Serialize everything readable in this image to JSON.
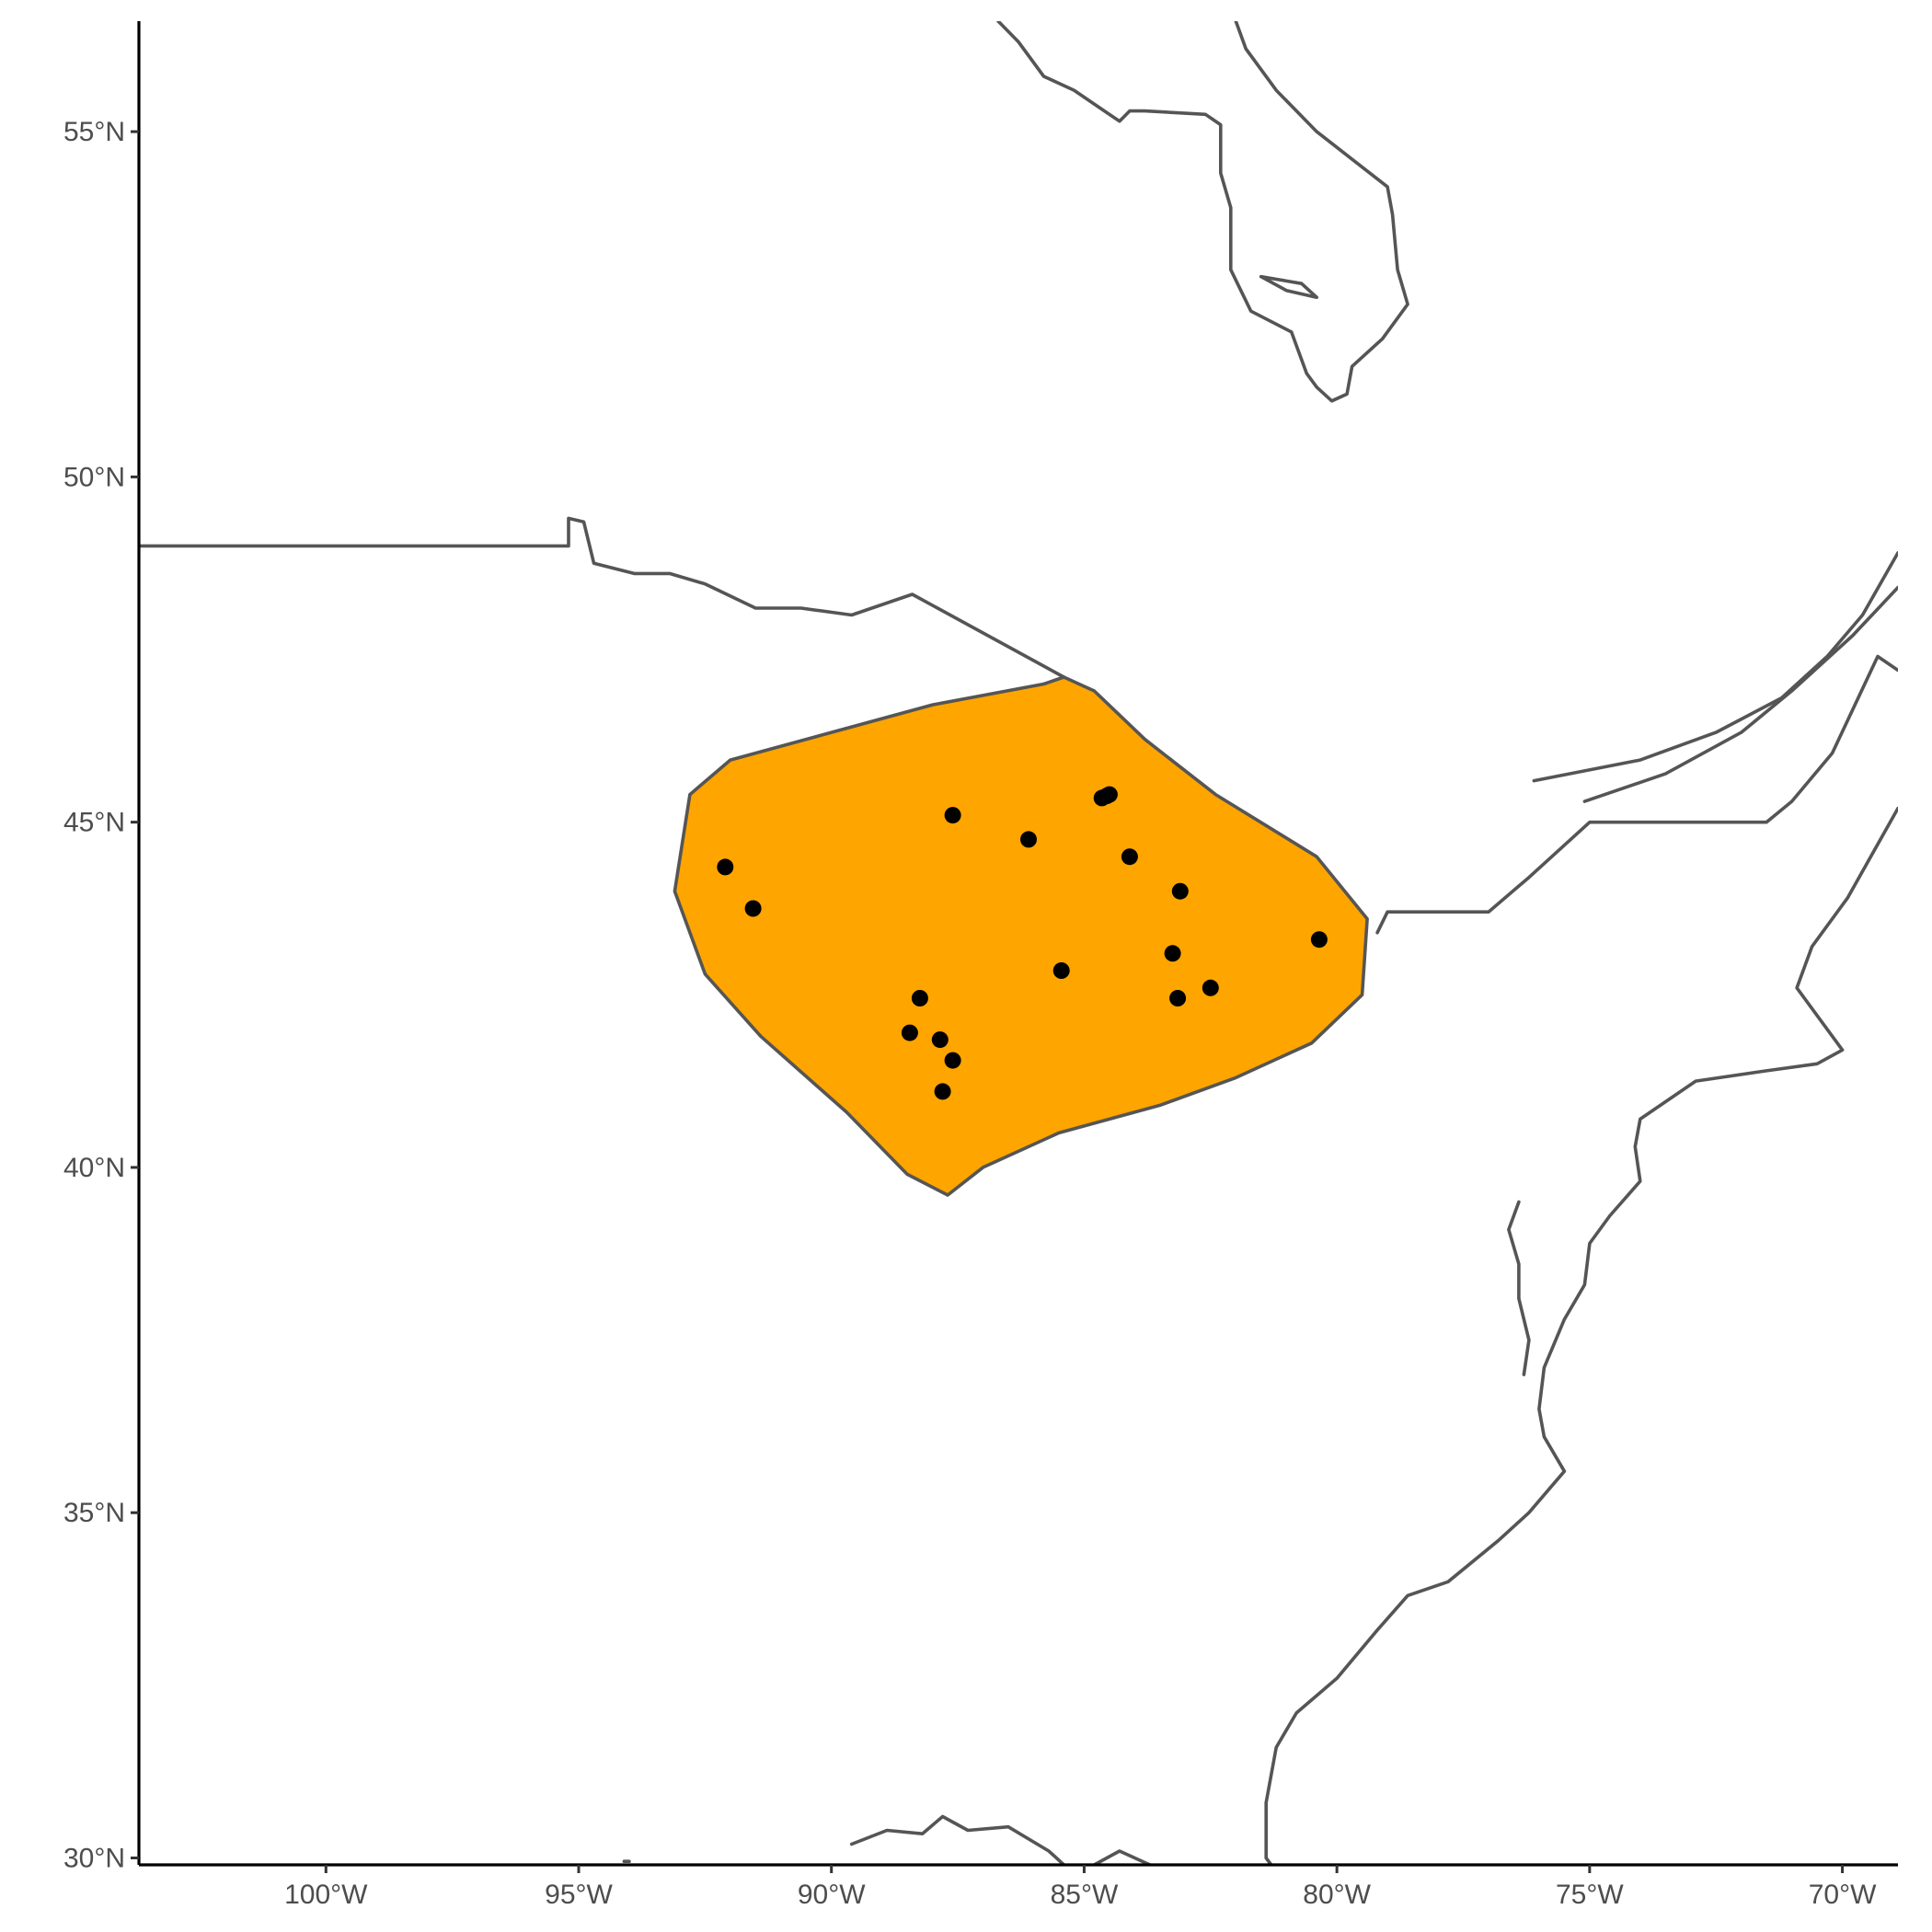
{
  "map": {
    "projection": "geographic (longitude / latitude)",
    "lon_range": [
      -103.7,
      -68.9
    ],
    "lat_range": [
      29.9,
      56.6
    ],
    "grid": false,
    "x_ticks": [
      {
        "lon": -100,
        "label": "100°W"
      },
      {
        "lon": -95,
        "label": "95°W"
      },
      {
        "lon": -90,
        "label": "90°W"
      },
      {
        "lon": -85,
        "label": "85°W"
      },
      {
        "lon": -80,
        "label": "80°W"
      },
      {
        "lon": -75,
        "label": "75°W"
      },
      {
        "lon": -70,
        "label": "70°W"
      }
    ],
    "y_ticks": [
      {
        "lat": 30,
        "label": "30°N"
      },
      {
        "lat": 35,
        "label": "35°N"
      },
      {
        "lat": 40,
        "label": "40°N"
      },
      {
        "lat": 45,
        "label": "45°N"
      },
      {
        "lat": 50,
        "label": "50°N"
      },
      {
        "lat": 55,
        "label": "55°N"
      }
    ],
    "colors": {
      "range_fill": "#FFA500",
      "outline": "#555555",
      "points": "#000000",
      "background": "#ffffff"
    },
    "range_polygon": {
      "name": "range-area",
      "coords": [
        [
          -85.4,
          47.1
        ],
        [
          -84.8,
          46.9
        ],
        [
          -83.8,
          46.2
        ],
        [
          -82.4,
          45.4
        ],
        [
          -80.4,
          44.5
        ],
        [
          -79.4,
          43.6
        ],
        [
          -79.5,
          42.5
        ],
        [
          -80.5,
          41.8
        ],
        [
          -82.0,
          41.3
        ],
        [
          -83.5,
          40.9
        ],
        [
          -85.5,
          40.5
        ],
        [
          -87.0,
          40.0
        ],
        [
          -87.7,
          39.6
        ],
        [
          -88.5,
          39.9
        ],
        [
          -89.7,
          40.8
        ],
        [
          -91.4,
          41.9
        ],
        [
          -92.5,
          42.8
        ],
        [
          -93.1,
          44.0
        ],
        [
          -92.8,
          45.4
        ],
        [
          -92.0,
          45.9
        ],
        [
          -88.0,
          46.7
        ],
        [
          -85.8,
          47.0
        ],
        [
          -85.4,
          47.1
        ]
      ]
    },
    "points": [
      [
        -92.1,
        44.35
      ],
      [
        -91.55,
        43.75
      ],
      [
        -87.6,
        45.1
      ],
      [
        -86.1,
        44.75
      ],
      [
        -84.65,
        45.35
      ],
      [
        -84.5,
        45.4
      ],
      [
        -84.55,
        45.38
      ],
      [
        -84.1,
        44.5
      ],
      [
        -83.1,
        44.0
      ],
      [
        -83.25,
        43.1
      ],
      [
        -80.35,
        43.3
      ],
      [
        -85.45,
        42.85
      ],
      [
        -82.5,
        42.6
      ],
      [
        -83.15,
        42.45
      ],
      [
        -88.25,
        42.45
      ],
      [
        -88.45,
        41.95
      ],
      [
        -87.85,
        41.85
      ],
      [
        -87.6,
        41.55
      ],
      [
        -87.8,
        41.1
      ]
    ],
    "coastlines": [
      {
        "name": "us-canada-border-west",
        "coords": [
          [
            -103.7,
            49.0
          ],
          [
            -95.2,
            49.0
          ],
          [
            -95.2,
            49.4
          ],
          [
            -94.9,
            49.35
          ],
          [
            -94.7,
            48.75
          ],
          [
            -93.9,
            48.6
          ],
          [
            -93.2,
            48.6
          ],
          [
            -92.5,
            48.45
          ],
          [
            -91.5,
            48.1
          ],
          [
            -90.6,
            48.1
          ],
          [
            -89.6,
            48.0
          ],
          [
            -88.4,
            48.3
          ],
          [
            -85.4,
            47.1
          ]
        ]
      },
      {
        "name": "us-canada-border-east",
        "coords": [
          [
            -79.2,
            43.4
          ],
          [
            -79.0,
            43.7
          ],
          [
            -77.0,
            43.7
          ],
          [
            -76.2,
            44.2
          ],
          [
            -75.0,
            45.0
          ],
          [
            -71.5,
            45.0
          ],
          [
            -71.0,
            45.3
          ],
          [
            -70.2,
            46.0
          ],
          [
            -69.3,
            47.4
          ],
          [
            -68.9,
            47.2
          ]
        ]
      },
      {
        "name": "st-lawrence-north",
        "coords": [
          [
            -76.1,
            45.6
          ],
          [
            -74.0,
            45.9
          ],
          [
            -72.5,
            46.3
          ],
          [
            -71.2,
            46.8
          ],
          [
            -70.3,
            47.4
          ],
          [
            -69.6,
            48.0
          ],
          [
            -68.9,
            48.9
          ]
        ]
      },
      {
        "name": "st-lawrence-south",
        "coords": [
          [
            -75.1,
            45.3
          ],
          [
            -73.5,
            45.7
          ],
          [
            -72.0,
            46.3
          ],
          [
            -71.0,
            46.9
          ],
          [
            -69.8,
            47.7
          ],
          [
            -68.9,
            48.4
          ]
        ]
      },
      {
        "name": "hudson-bay",
        "coords": [
          [
            -86.7,
            56.6
          ],
          [
            -86.3,
            56.3
          ],
          [
            -85.8,
            55.8
          ],
          [
            -85.2,
            55.6
          ],
          [
            -84.6,
            55.3
          ],
          [
            -84.3,
            55.15
          ],
          [
            -84.1,
            55.3
          ],
          [
            -83.8,
            55.3
          ],
          [
            -82.6,
            55.25
          ],
          [
            -82.3,
            55.1
          ],
          [
            -82.3,
            54.4
          ],
          [
            -82.1,
            53.9
          ],
          [
            -82.1,
            53.0
          ],
          [
            -81.7,
            52.4
          ],
          [
            -80.9,
            52.1
          ],
          [
            -80.6,
            51.5
          ],
          [
            -80.4,
            51.3
          ],
          [
            -80.1,
            51.1
          ],
          [
            -79.8,
            51.2
          ],
          [
            -79.7,
            51.6
          ],
          [
            -79.1,
            52.0
          ],
          [
            -78.6,
            52.5
          ],
          [
            -78.8,
            53.0
          ],
          [
            -78.9,
            53.8
          ],
          [
            -79.0,
            54.2
          ],
          [
            -79.7,
            54.6
          ],
          [
            -80.4,
            55.0
          ],
          [
            -81.2,
            55.6
          ],
          [
            -81.8,
            56.2
          ],
          [
            -82.0,
            56.6
          ]
        ]
      },
      {
        "name": "akimiski-island",
        "coords": [
          [
            -81.5,
            52.9
          ],
          [
            -80.7,
            52.8
          ],
          [
            -80.4,
            52.6
          ],
          [
            -81.0,
            52.7
          ],
          [
            -81.5,
            52.9
          ]
        ]
      },
      {
        "name": "east-coast",
        "coords": [
          [
            -68.9,
            45.2
          ],
          [
            -69.9,
            43.9
          ],
          [
            -70.6,
            43.2
          ],
          [
            -70.9,
            42.6
          ],
          [
            -70.0,
            41.7
          ],
          [
            -70.5,
            41.5
          ],
          [
            -71.5,
            41.4
          ],
          [
            -72.9,
            41.25
          ],
          [
            -74.0,
            40.7
          ],
          [
            -74.1,
            40.3
          ],
          [
            -74.0,
            39.8
          ],
          [
            -74.6,
            39.3
          ],
          [
            -75.0,
            38.9
          ],
          [
            -75.1,
            38.3
          ],
          [
            -75.5,
            37.8
          ],
          [
            -75.9,
            37.1
          ],
          [
            -76.0,
            36.5
          ],
          [
            -75.9,
            36.1
          ],
          [
            -75.5,
            35.6
          ],
          [
            -76.2,
            35.0
          ],
          [
            -76.8,
            34.6
          ],
          [
            -77.8,
            34.0
          ],
          [
            -78.6,
            33.8
          ],
          [
            -79.2,
            33.3
          ],
          [
            -80.0,
            32.6
          ],
          [
            -80.8,
            32.1
          ],
          [
            -81.2,
            31.6
          ],
          [
            -81.4,
            30.8
          ],
          [
            -81.4,
            30.0
          ],
          [
            -81.3,
            29.9
          ]
        ]
      },
      {
        "name": "chesapeake-bay",
        "coords": [
          [
            -76.4,
            39.5
          ],
          [
            -76.6,
            39.1
          ],
          [
            -76.4,
            38.6
          ],
          [
            -76.4,
            38.1
          ],
          [
            -76.2,
            37.5
          ],
          [
            -76.3,
            37.0
          ]
        ]
      },
      {
        "name": "gulf-coast",
        "coords": [
          [
            -89.6,
            30.2
          ],
          [
            -88.9,
            30.4
          ],
          [
            -88.2,
            30.35
          ],
          [
            -87.8,
            30.6
          ],
          [
            -87.3,
            30.4
          ],
          [
            -86.5,
            30.45
          ],
          [
            -85.7,
            30.1
          ],
          [
            -85.4,
            29.9
          ]
        ]
      },
      {
        "name": "gulf-coast-west",
        "coords": [
          [
            -94.1,
            29.95
          ],
          [
            -94.0,
            29.95
          ]
        ]
      },
      {
        "name": "gulf-coast-east",
        "coords": [
          [
            -84.8,
            29.9
          ],
          [
            -84.3,
            30.1
          ],
          [
            -83.7,
            29.9
          ]
        ]
      }
    ]
  }
}
